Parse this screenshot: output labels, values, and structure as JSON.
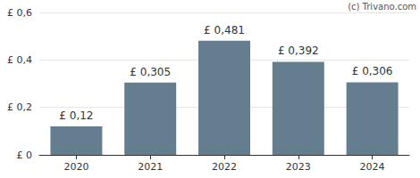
{
  "chart_data": {
    "type": "bar",
    "annotation": "(c) Trivano.com",
    "categories": [
      "2020",
      "2021",
      "2022",
      "2023",
      "2024"
    ],
    "values": [
      0.12,
      0.305,
      0.481,
      0.392,
      0.306
    ],
    "value_labels": [
      "£ 0,12",
      "£ 0,305",
      "£ 0,481",
      "£ 0,392",
      "£ 0,306"
    ],
    "data_labels": true,
    "color": "#647d8f",
    "ylim": [
      0,
      0.6
    ],
    "yticks": [
      {
        "value": 0,
        "label": "£ 0"
      },
      {
        "value": 0.2,
        "label": "£ 0,2"
      },
      {
        "value": 0.4,
        "label": "£ 0,4"
      },
      {
        "value": 0.6,
        "label": "£ 0,6"
      }
    ],
    "grid": true
  }
}
